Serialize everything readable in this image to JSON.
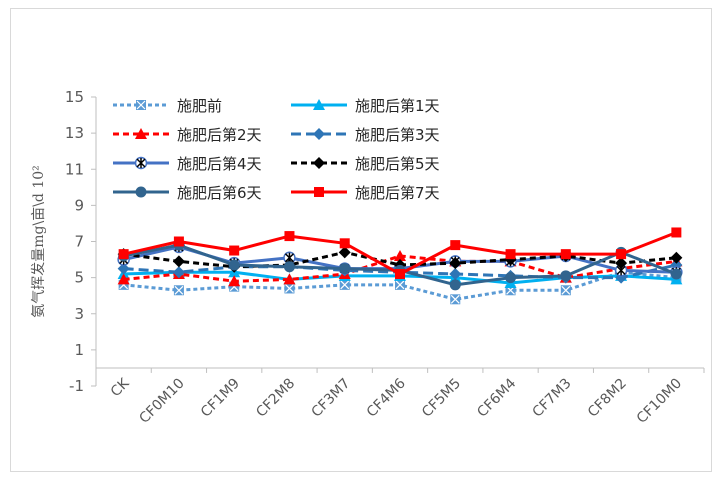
{
  "chart_data": {
    "type": "line",
    "title": "",
    "xlabel": "",
    "ylabel": "氨气挥发量mg\\亩\\d 10²",
    "ylim": [
      -1,
      15
    ],
    "yticks": [
      -1,
      1,
      3,
      5,
      7,
      9,
      11,
      13,
      15
    ],
    "grid": false,
    "legend_position": "top-left inside",
    "categories": [
      "CK",
      "CF0M10",
      "CF1M9",
      "CF2M8",
      "CF3M7",
      "CF4M6",
      "CF5M5",
      "CF6M4",
      "CF7M3",
      "CF8M2",
      "CF10M0"
    ],
    "series": [
      {
        "name": "施肥前",
        "color": "#5b9bd5",
        "dash": "4 3",
        "marker": "square-x",
        "values": [
          4.6,
          4.3,
          4.5,
          4.4,
          4.6,
          4.6,
          3.8,
          4.3,
          4.3,
          5.3,
          5.0
        ]
      },
      {
        "name": "施肥后第1天",
        "color": "#00b0f0",
        "dash": "",
        "marker": "triangle",
        "values": [
          5.2,
          5.3,
          5.3,
          4.9,
          5.1,
          5.1,
          5.0,
          4.7,
          5.0,
          5.1,
          4.9
        ]
      },
      {
        "name": "施肥后第2天",
        "color": "#ff0000",
        "dash": "6 4",
        "marker": "triangle",
        "values": [
          4.9,
          5.2,
          4.8,
          4.9,
          5.2,
          6.2,
          5.9,
          5.9,
          5.0,
          5.5,
          5.9
        ]
      },
      {
        "name": "施肥后第3天",
        "color": "#2e75b6",
        "dash": "10 5",
        "marker": "diamond",
        "values": [
          5.5,
          5.3,
          5.6,
          5.6,
          5.4,
          5.3,
          5.2,
          5.1,
          5.0,
          5.0,
          5.7
        ]
      },
      {
        "name": "施肥后第4天",
        "color": "#4472c4",
        "dash": "",
        "marker": "asterisk",
        "values": [
          6.0,
          6.7,
          5.8,
          6.1,
          5.5,
          5.5,
          5.9,
          5.9,
          6.2,
          5.4,
          5.3
        ]
      },
      {
        "name": "施肥后第5天",
        "color": "#000000",
        "dash": "6 4",
        "marker": "diamond",
        "values": [
          6.3,
          5.9,
          5.6,
          5.7,
          6.4,
          5.7,
          5.8,
          6.0,
          6.2,
          5.8,
          6.1
        ]
      },
      {
        "name": "施肥后第6天",
        "color": "#31648e",
        "dash": "",
        "marker": "circle",
        "values": [
          6.2,
          6.8,
          5.7,
          5.6,
          5.5,
          5.4,
          4.6,
          5.0,
          5.1,
          6.4,
          5.2
        ]
      },
      {
        "name": "施肥后第7天",
        "color": "#ff0000",
        "dash": "",
        "marker": "square",
        "values": [
          6.3,
          7.0,
          6.5,
          7.3,
          6.9,
          5.2,
          6.8,
          6.3,
          6.3,
          6.3,
          7.5
        ]
      }
    ]
  }
}
